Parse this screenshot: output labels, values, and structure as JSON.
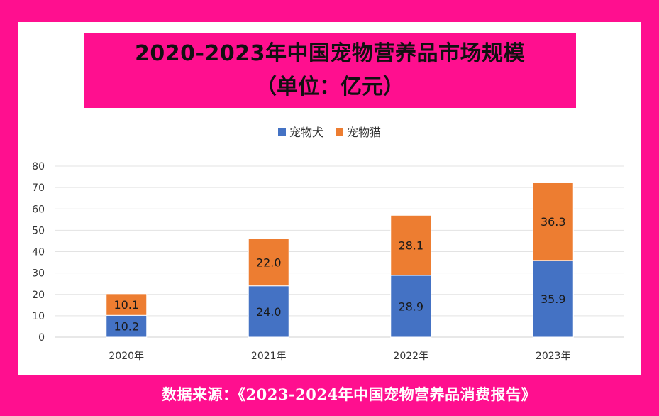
{
  "title_line1": "2020-2023年中国宠物营养品市场规模",
  "title_line2": "（单位：亿元）",
  "source": "数据来源：《2023-2024年中国宠物营养品消费报告》",
  "colors": {
    "background": "#ff0f8f",
    "dog": "#4472c4",
    "cat": "#ed7d31"
  },
  "chart_data": {
    "type": "bar",
    "stacked": true,
    "categories": [
      "2020年",
      "2021年",
      "2022年",
      "2023年"
    ],
    "series": [
      {
        "name": "宠物犬",
        "values": [
          10.2,
          24.0,
          28.9,
          35.9
        ],
        "labels": [
          "10.2",
          "24.0",
          "28.9",
          "35.9"
        ],
        "color": "#4472c4"
      },
      {
        "name": "宠物猫",
        "values": [
          10.1,
          22.0,
          28.1,
          36.3
        ],
        "labels": [
          "10.1",
          "22.0",
          "28.1",
          "36.3"
        ],
        "color": "#ed7d31"
      }
    ],
    "ylim": [
      0,
      80
    ],
    "yticks": [
      "0",
      "10",
      "20",
      "30",
      "40",
      "50",
      "60",
      "70",
      "80"
    ],
    "grid": true,
    "legend": "top-center"
  }
}
